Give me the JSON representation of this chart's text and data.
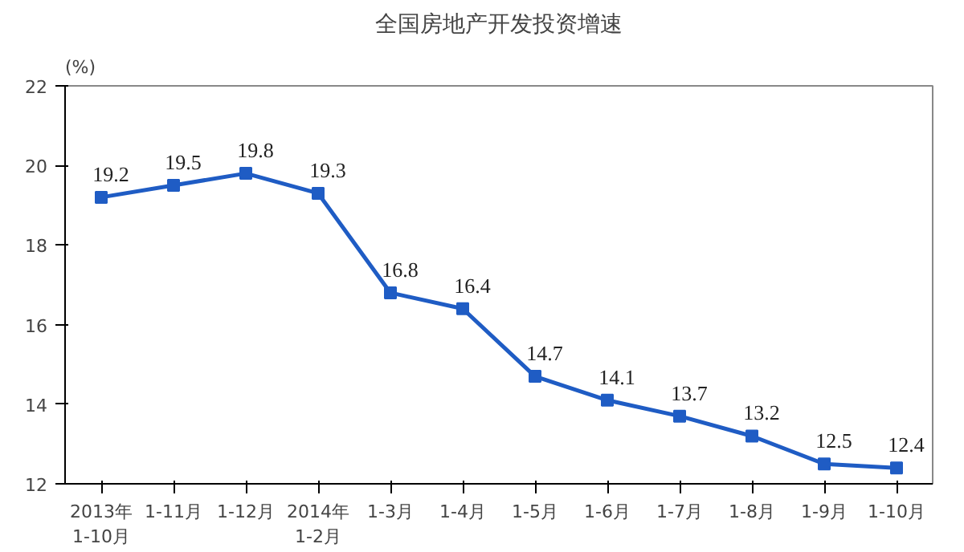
{
  "chart_data": {
    "type": "line",
    "title": "全国房地产开发投资增速",
    "ylabel": "(%)",
    "categories": [
      "2013年\n1-10月",
      "1-11月",
      "1-12月",
      "2014年\n1-2月",
      "1-3月",
      "1-4月",
      "1-5月",
      "1-6月",
      "1-7月",
      "1-8月",
      "1-9月",
      "1-10月"
    ],
    "series": [
      {
        "color": "#1f5cc4",
        "values": [
          19.2,
          19.5,
          19.8,
          19.3,
          16.8,
          16.4,
          14.7,
          14.1,
          13.7,
          13.2,
          12.5,
          12.4
        ]
      }
    ],
    "ylim": [
      12,
      22
    ],
    "yticks": [
      12,
      14,
      16,
      18,
      20,
      22
    ],
    "marker": "square",
    "data_labels": true
  }
}
